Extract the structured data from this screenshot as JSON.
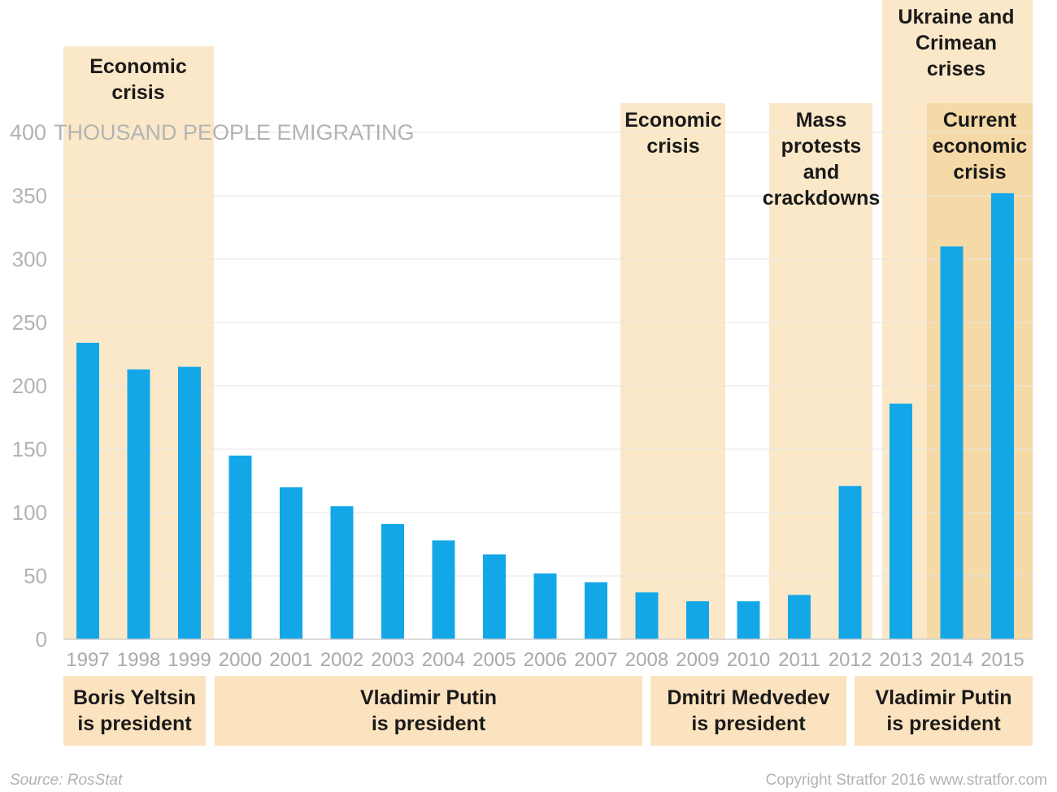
{
  "chart_data": {
    "type": "bar",
    "ylabel": "THOUSAND PEOPLE EMIGRATING",
    "ylim": [
      0,
      400
    ],
    "yticks": [
      0,
      50,
      100,
      150,
      200,
      250,
      300,
      350,
      400
    ],
    "categories": [
      "1997",
      "1998",
      "1999",
      "2000",
      "2001",
      "2002",
      "2003",
      "2004",
      "2005",
      "2006",
      "2007",
      "2008",
      "2009",
      "2010",
      "2011",
      "2012",
      "2013",
      "2014",
      "2015"
    ],
    "values": [
      234,
      213,
      215,
      145,
      120,
      105,
      91,
      78,
      67,
      52,
      45,
      37,
      30,
      30,
      35,
      121,
      186,
      310,
      352
    ],
    "color": "#14a7e8",
    "crisis_periods": [
      {
        "label": "Economic\ncrisis",
        "start": "1997",
        "end": "1999"
      },
      {
        "label": "Economic\ncrisis",
        "start": "2008",
        "end": "2009"
      },
      {
        "label": "Mass\nprotests\nand\ncrackdowns",
        "start": "2011",
        "end": "2012"
      },
      {
        "label": "Ukraine and\nCrimean\ncrises",
        "start": "2013",
        "end": "2015"
      },
      {
        "label": "Current\neconomic\ncrisis",
        "start": "2014",
        "end": "2015"
      }
    ],
    "presidents": [
      {
        "label": "Boris Yeltsin\nis president",
        "start": "1997",
        "end": "1999"
      },
      {
        "label": "Vladimir Putin\nis president",
        "start": "2000",
        "end": "2008"
      },
      {
        "label": "Dmitri Medvedev\nis president",
        "start": "2008",
        "end": "2012"
      },
      {
        "label": "Vladimir Putin\nis president",
        "start": "2012",
        "end": "2015"
      }
    ]
  },
  "footer": {
    "source": "Source: RosStat",
    "copyright": "Copyright Stratfor 2016   www.stratfor.com"
  }
}
